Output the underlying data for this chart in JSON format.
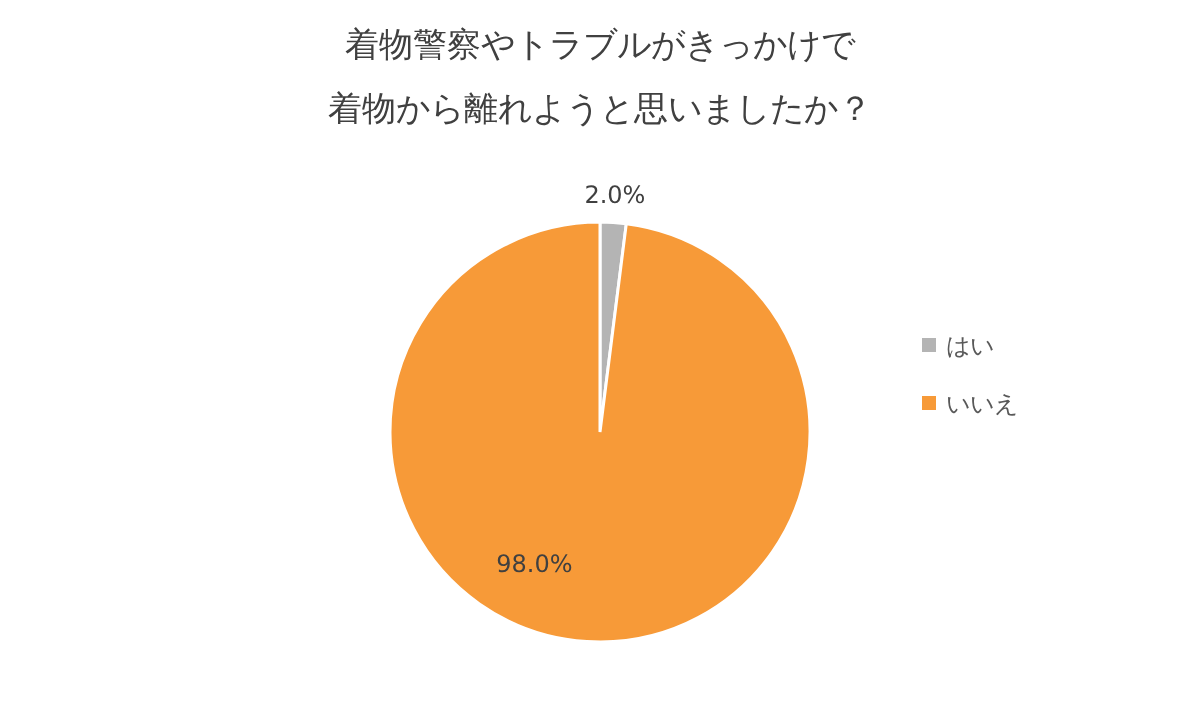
{
  "chart_data": {
    "type": "pie",
    "title": "着物警察やトラブルがきっかけで",
    "subtitle": "着物から離れようと思いましたか？",
    "categories": [
      "はい",
      "いいえ"
    ],
    "values": [
      2,
      98
    ],
    "colors": [
      "#b4b4b4",
      "#f79a38"
    ],
    "value_labels": [
      "2.0%",
      "98.0%"
    ],
    "legend": "right"
  }
}
